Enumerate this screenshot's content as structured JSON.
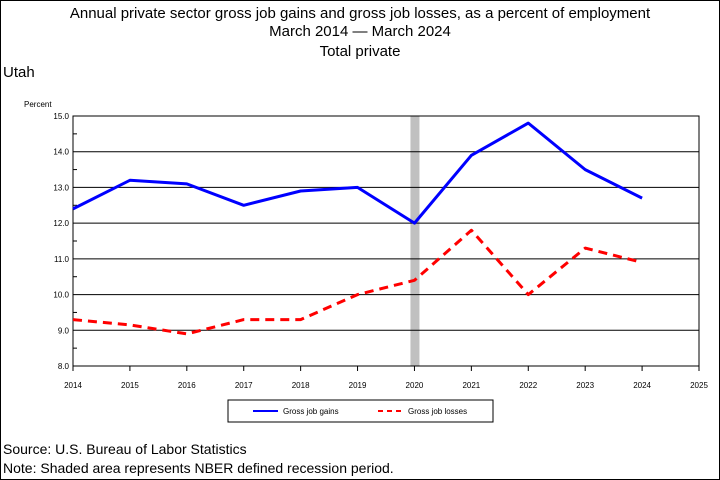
{
  "chart_data": {
    "type": "line",
    "title": "Annual private sector gross job gains and gross job losses, as a percent of employment",
    "subtitle": "March 2014 — March 2024",
    "subtitle2": "Total private",
    "region": "Utah",
    "ylabel": "Percent",
    "xlabel": "",
    "xlim": [
      2014,
      2025
    ],
    "ylim": [
      8.0,
      15.0
    ],
    "x_ticks": [
      "2014",
      "2015",
      "2016",
      "2017",
      "2018",
      "2019",
      "2020",
      "2021",
      "2022",
      "2023",
      "2024",
      "2025"
    ],
    "y_ticks": [
      "8.0",
      "9.0",
      "10.0",
      "11.0",
      "12.0",
      "13.0",
      "14.0",
      "15.0"
    ],
    "recession": {
      "x": 2020
    },
    "grid": true,
    "legend_position": "bottom",
    "series": [
      {
        "name": "Gross job gains",
        "color": "#0000ff",
        "style": "solid",
        "x": [
          2014,
          2015,
          2016,
          2017,
          2018,
          2019,
          2020,
          2021,
          2022,
          2023,
          2024
        ],
        "values": [
          12.4,
          13.2,
          13.1,
          12.5,
          12.9,
          13.0,
          12.0,
          13.9,
          14.8,
          13.5,
          12.7
        ]
      },
      {
        "name": "Gross job losses",
        "color": "#ff0000",
        "style": "dashed",
        "x": [
          2014,
          2015,
          2016,
          2017,
          2018,
          2019,
          2020,
          2021,
          2022,
          2023,
          2024
        ],
        "values": [
          9.3,
          9.15,
          8.9,
          9.3,
          9.3,
          10.0,
          10.4,
          11.8,
          10.0,
          11.3,
          10.9
        ]
      }
    ]
  },
  "footer": {
    "source": "Source: U.S. Bureau of Labor Statistics",
    "note": "Note: Shaded area represents NBER defined recession period."
  }
}
